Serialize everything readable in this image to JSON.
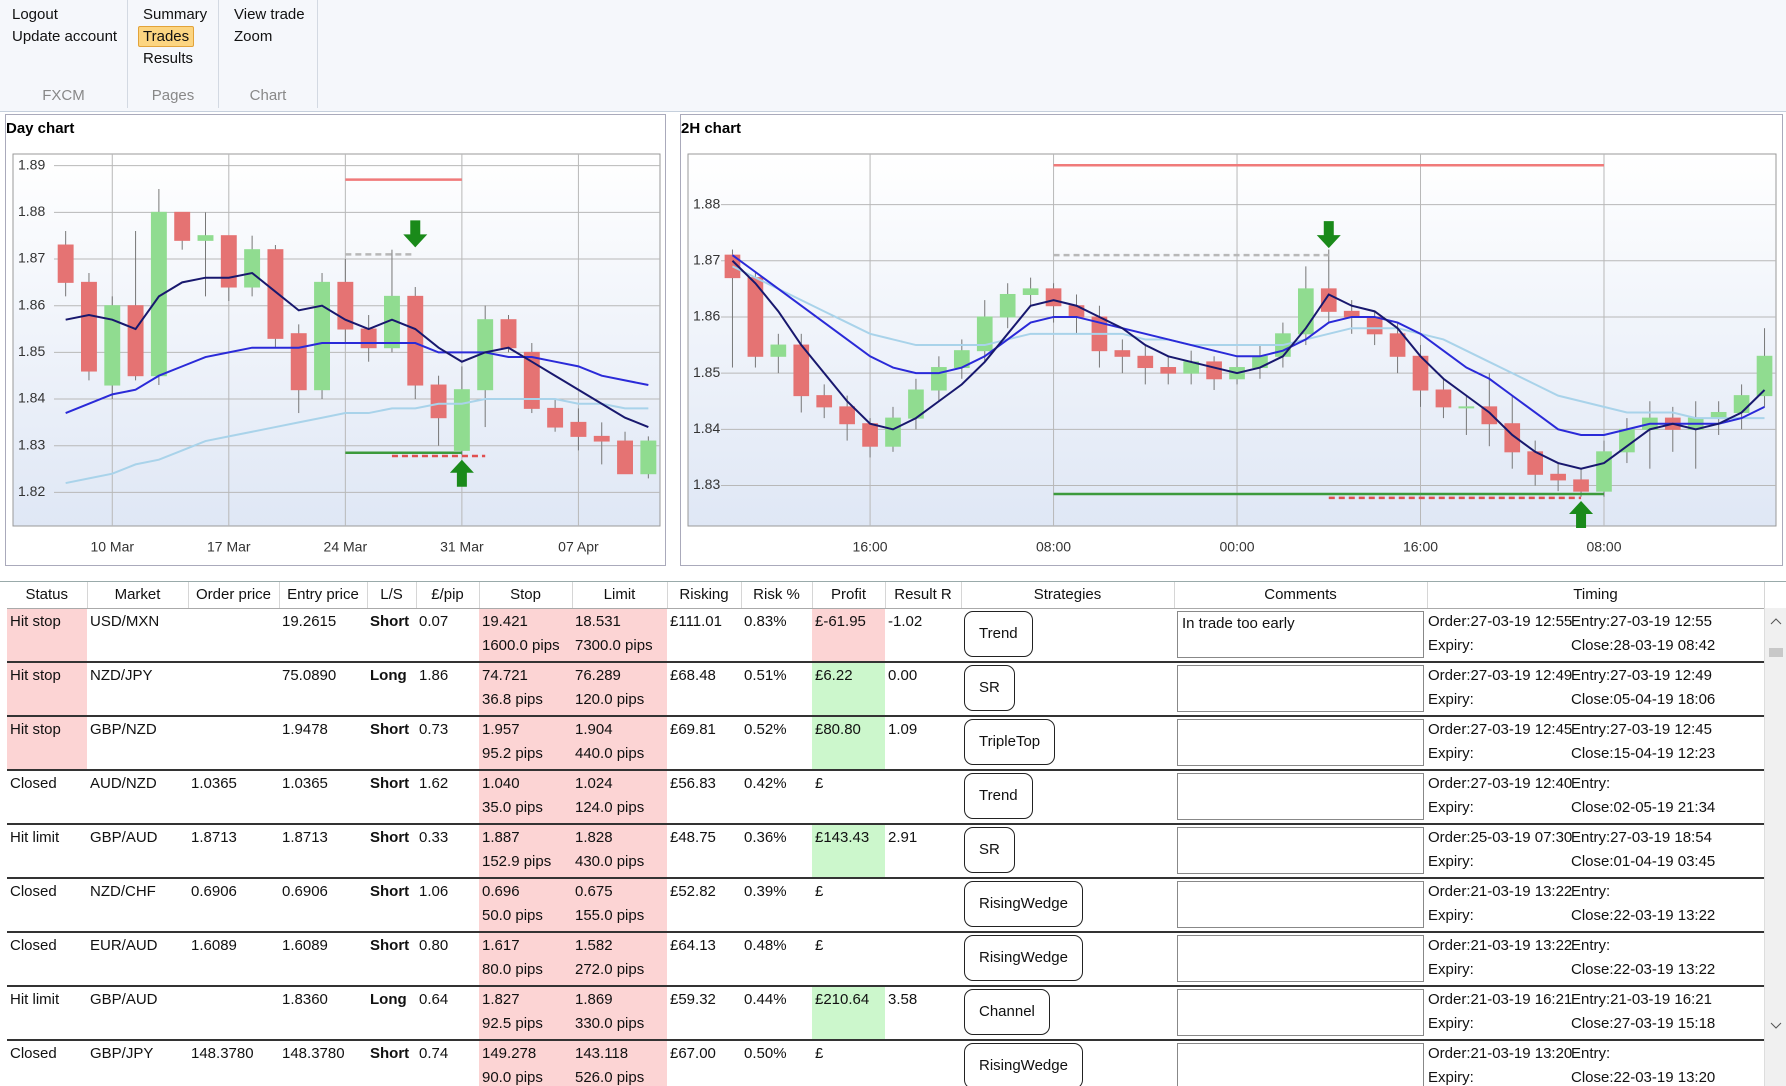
{
  "ribbon": {
    "groups": [
      {
        "label": "FXCM",
        "items": [
          "Logout",
          "Update account"
        ]
      },
      {
        "label": "Pages",
        "items": [
          "Summary",
          "Trades",
          "Results"
        ],
        "selected": 1
      },
      {
        "label": "Chart",
        "items": [
          "View trade",
          "Zoom"
        ]
      }
    ]
  },
  "chart_data": [
    {
      "type": "candlestick",
      "title": "Day chart",
      "categories": [
        null,
        null,
        "10 Mar",
        null,
        null,
        null,
        null,
        "17 Mar",
        null,
        null,
        null,
        null,
        "24 Mar",
        null,
        null,
        null,
        null,
        "31 Mar",
        null,
        null,
        null,
        null,
        "07 Apr",
        null,
        null,
        null
      ],
      "open": [
        1.873,
        1.865,
        1.843,
        1.86,
        1.845,
        1.88,
        1.874,
        1.875,
        1.864,
        1.872,
        1.854,
        1.842,
        1.865,
        1.855,
        1.851,
        1.862,
        1.843,
        1.829,
        1.842,
        1.857,
        1.85,
        1.838,
        1.835,
        1.832,
        1.831,
        1.824
      ],
      "high": [
        1.876,
        1.867,
        1.862,
        1.876,
        1.885,
        1.88,
        1.88,
        1.875,
        1.875,
        1.873,
        1.856,
        1.867,
        1.87,
        1.858,
        1.872,
        1.864,
        1.845,
        1.847,
        1.86,
        1.858,
        1.852,
        1.84,
        1.838,
        1.835,
        1.833,
        1.832
      ],
      "low": [
        1.862,
        1.844,
        1.84,
        1.844,
        1.843,
        1.872,
        1.862,
        1.861,
        1.862,
        1.851,
        1.837,
        1.84,
        1.852,
        1.848,
        1.85,
        1.84,
        1.83,
        1.828,
        1.834,
        1.85,
        1.837,
        1.833,
        1.829,
        1.826,
        1.824,
        1.823
      ],
      "close": [
        1.865,
        1.846,
        1.86,
        1.845,
        1.88,
        1.874,
        1.875,
        1.864,
        1.872,
        1.853,
        1.842,
        1.865,
        1.855,
        1.851,
        1.862,
        1.843,
        1.836,
        1.842,
        1.857,
        1.851,
        1.838,
        1.834,
        1.832,
        1.831,
        1.824,
        1.831
      ],
      "up_color": "#90dc90",
      "down_color": "#e57373",
      "series": [
        {
          "color": "#a9d3ea",
          "values": [
            1.822,
            1.823,
            1.824,
            1.826,
            1.827,
            1.829,
            1.831,
            1.832,
            1.833,
            1.834,
            1.835,
            1.836,
            1.837,
            1.837,
            1.838,
            1.838,
            1.839,
            1.839,
            1.84,
            1.84,
            1.84,
            1.84,
            1.839,
            1.839,
            1.838,
            1.838
          ]
        },
        {
          "color": "#2a2ad8",
          "values": [
            1.837,
            1.839,
            1.841,
            1.842,
            1.845,
            1.847,
            1.849,
            1.85,
            1.851,
            1.851,
            1.851,
            1.852,
            1.852,
            1.852,
            1.852,
            1.852,
            1.85,
            1.85,
            1.85,
            1.849,
            1.849,
            1.848,
            1.847,
            1.845,
            1.844,
            1.843
          ]
        },
        {
          "color": "#18186e",
          "values": [
            1.857,
            1.858,
            1.857,
            1.855,
            1.862,
            1.865,
            1.866,
            1.866,
            1.867,
            1.863,
            1.859,
            1.86,
            1.857,
            1.855,
            1.857,
            1.855,
            1.851,
            1.848,
            1.85,
            1.851,
            1.848,
            1.845,
            1.842,
            1.839,
            1.836,
            1.834
          ]
        }
      ],
      "levels": [
        {
          "value": 1.887,
          "color": "#f07a7a"
        },
        {
          "value": 1.871,
          "color": "#b8b8b8",
          "dashed": true
        },
        {
          "value": 1.8285,
          "color": "#3c9a3c"
        },
        {
          "value": 1.8278,
          "color": "#e05050",
          "dashed": true
        }
      ],
      "ylim": [
        1.8128,
        1.8925
      ],
      "yticks": [
        1.82,
        1.83,
        1.84,
        1.85,
        1.86,
        1.87,
        1.88,
        1.89
      ],
      "grid": true
    },
    {
      "type": "candlestick",
      "title": "2H chart",
      "categories": [
        null,
        null,
        null,
        null,
        null,
        null,
        "16:00",
        null,
        null,
        null,
        null,
        null,
        null,
        null,
        "08:00",
        null,
        null,
        null,
        null,
        null,
        null,
        null,
        "00:00",
        null,
        null,
        null,
        null,
        null,
        null,
        null,
        "16:00",
        null,
        null,
        null,
        null,
        null,
        null,
        null,
        "08:00",
        null,
        null,
        null,
        null,
        null,
        null,
        null
      ],
      "open": [
        1.871,
        1.867,
        1.853,
        1.855,
        1.846,
        1.844,
        1.841,
        1.837,
        1.842,
        1.847,
        1.851,
        1.854,
        1.86,
        1.864,
        1.865,
        1.862,
        1.86,
        1.854,
        1.853,
        1.851,
        1.85,
        1.852,
        1.849,
        1.851,
        1.853,
        1.857,
        1.865,
        1.861,
        1.86,
        1.857,
        1.853,
        1.847,
        1.844,
        1.844,
        1.841,
        1.836,
        1.832,
        1.831,
        1.829,
        1.836,
        1.84,
        1.842,
        1.84,
        1.842,
        1.843,
        1.846
      ],
      "high": [
        1.872,
        1.868,
        1.857,
        1.857,
        1.848,
        1.846,
        1.842,
        1.844,
        1.849,
        1.853,
        1.856,
        1.863,
        1.866,
        1.867,
        1.866,
        1.864,
        1.862,
        1.856,
        1.855,
        1.853,
        1.854,
        1.853,
        1.853,
        1.855,
        1.859,
        1.869,
        1.872,
        1.863,
        1.861,
        1.859,
        1.855,
        1.849,
        1.846,
        1.85,
        1.846,
        1.838,
        1.834,
        1.833,
        1.838,
        1.842,
        1.845,
        1.844,
        1.845,
        1.845,
        1.848,
        1.858
      ],
      "low": [
        1.851,
        1.851,
        1.85,
        1.843,
        1.842,
        1.838,
        1.835,
        1.836,
        1.84,
        1.845,
        1.849,
        1.852,
        1.858,
        1.862,
        1.859,
        1.857,
        1.851,
        1.85,
        1.848,
        1.848,
        1.848,
        1.847,
        1.848,
        1.849,
        1.851,
        1.855,
        1.859,
        1.857,
        1.855,
        1.85,
        1.844,
        1.842,
        1.839,
        1.837,
        1.833,
        1.83,
        1.829,
        1.828,
        1.828,
        1.834,
        1.833,
        1.836,
        1.833,
        1.839,
        1.84,
        1.844
      ],
      "close": [
        1.867,
        1.853,
        1.855,
        1.846,
        1.844,
        1.841,
        1.837,
        1.842,
        1.847,
        1.851,
        1.854,
        1.86,
        1.864,
        1.865,
        1.862,
        1.86,
        1.854,
        1.853,
        1.851,
        1.85,
        1.852,
        1.849,
        1.851,
        1.853,
        1.857,
        1.865,
        1.861,
        1.86,
        1.857,
        1.853,
        1.847,
        1.844,
        1.844,
        1.841,
        1.836,
        1.832,
        1.831,
        1.829,
        1.836,
        1.84,
        1.842,
        1.84,
        1.842,
        1.843,
        1.846,
        1.853
      ],
      "up_color": "#90dc90",
      "down_color": "#e57373",
      "series": [
        {
          "color": "#a9d3ea",
          "values": [
            1.869,
            1.867,
            1.865,
            1.863,
            1.861,
            1.859,
            1.857,
            1.856,
            1.855,
            1.855,
            1.855,
            1.855,
            1.856,
            1.857,
            1.857,
            1.857,
            1.857,
            1.857,
            1.856,
            1.856,
            1.855,
            1.855,
            1.855,
            1.855,
            1.855,
            1.856,
            1.857,
            1.858,
            1.858,
            1.858,
            1.857,
            1.856,
            1.854,
            1.852,
            1.85,
            1.848,
            1.846,
            1.845,
            1.844,
            1.843,
            1.843,
            1.843,
            1.842,
            1.842,
            1.842,
            1.842
          ]
        },
        {
          "color": "#2a2ad8",
          "values": [
            1.871,
            1.868,
            1.865,
            1.862,
            1.859,
            1.856,
            1.853,
            1.851,
            1.85,
            1.85,
            1.851,
            1.853,
            1.856,
            1.859,
            1.86,
            1.86,
            1.859,
            1.858,
            1.857,
            1.856,
            1.855,
            1.854,
            1.853,
            1.853,
            1.854,
            1.856,
            1.859,
            1.86,
            1.86,
            1.859,
            1.857,
            1.854,
            1.851,
            1.849,
            1.846,
            1.843,
            1.84,
            1.839,
            1.839,
            1.84,
            1.841,
            1.841,
            1.841,
            1.841,
            1.842,
            1.844
          ]
        },
        {
          "color": "#18186e",
          "values": [
            1.87,
            1.866,
            1.861,
            1.855,
            1.85,
            1.845,
            1.841,
            1.84,
            1.842,
            1.845,
            1.848,
            1.852,
            1.857,
            1.862,
            1.863,
            1.862,
            1.86,
            1.858,
            1.855,
            1.853,
            1.852,
            1.851,
            1.85,
            1.851,
            1.853,
            1.858,
            1.864,
            1.862,
            1.861,
            1.858,
            1.853,
            1.849,
            1.846,
            1.843,
            1.839,
            1.836,
            1.834,
            1.833,
            1.834,
            1.837,
            1.84,
            1.841,
            1.84,
            1.841,
            1.843,
            1.847
          ]
        }
      ],
      "levels": [
        {
          "value": 1.887,
          "color": "#f07a7a"
        },
        {
          "value": 1.871,
          "color": "#b8b8b8",
          "dashed": true
        },
        {
          "value": 1.8285,
          "color": "#3c9a3c"
        },
        {
          "value": 1.8278,
          "color": "#e05050",
          "dashed": true
        }
      ],
      "ylim": [
        1.8228,
        1.889
      ],
      "yticks": [
        1.83,
        1.84,
        1.85,
        1.86,
        1.87,
        1.88
      ],
      "grid": true
    }
  ],
  "table": {
    "columns": [
      "Status",
      "Market",
      "Order price",
      "Entry price",
      "L/S",
      "£/pip",
      "Stop",
      "Limit",
      "Risking",
      "Risk %",
      "Profit",
      "Result R",
      "Strategies",
      "Comments",
      "Timing"
    ],
    "rows": [
      {
        "status": "Hit stop",
        "status_color": "#fcd4d4",
        "market": "USD/MXN",
        "entry_price": "19.2615",
        "side": "Short",
        "per_pip": "0.07",
        "stop": "19.421",
        "stop_pips": "1600.0 pips",
        "limit": "18.531",
        "limit_pips": "7300.0 pips",
        "risking": "£111.01",
        "risk_pct": "0.83%",
        "profit": "£-61.95",
        "profit_color": "#fcd4d4",
        "result_r": "-1.02",
        "strategy": "Trend",
        "comment": "In trade too early",
        "order": "Order:27-03-19 12:55",
        "expiry": "Expiry:",
        "entry": "Entry:27-03-19 12:55",
        "close": "Close:28-03-19 08:42"
      },
      {
        "status": "Hit stop",
        "status_color": "#fcd4d4",
        "market": "NZD/JPY",
        "entry_price": "75.0890",
        "side": "Long",
        "per_pip": "1.86",
        "stop": "74.721",
        "stop_pips": "36.8 pips",
        "limit": "76.289",
        "limit_pips": "120.0 pips",
        "risking": "£68.48",
        "risk_pct": "0.51%",
        "profit": "£6.22",
        "profit_color": "#ccf7cc",
        "result_r": "0.00",
        "strategy": "SR",
        "order": "Order:27-03-19 12:49",
        "expiry": "Expiry:",
        "entry": "Entry:27-03-19 12:49",
        "close": "Close:05-04-19 18:06"
      },
      {
        "status": "Hit stop",
        "status_color": "#fcd4d4",
        "market": "GBP/NZD",
        "entry_price": "1.9478",
        "side": "Short",
        "per_pip": "0.73",
        "stop": "1.957",
        "stop_pips": "95.2 pips",
        "limit": "1.904",
        "limit_pips": "440.0 pips",
        "risking": "£69.81",
        "risk_pct": "0.52%",
        "profit": "£80.80",
        "profit_color": "#ccf7cc",
        "result_r": "1.09",
        "strategy": "TripleTop",
        "order": "Order:27-03-19 12:45",
        "expiry": "Expiry:",
        "entry": "Entry:27-03-19 12:45",
        "close": "Close:15-04-19 12:23"
      },
      {
        "status": "Closed",
        "market": "AUD/NZD",
        "order_price": "1.0365",
        "entry_price": "1.0365",
        "side": "Short",
        "per_pip": "1.62",
        "stop": "1.040",
        "stop_pips": "35.0 pips",
        "limit": "1.024",
        "limit_pips": "124.0 pips",
        "risking": "£56.83",
        "risk_pct": "0.42%",
        "profit": "£",
        "strategy": "Trend",
        "order": "Order:27-03-19 12:40",
        "expiry": "Expiry:",
        "entry": "Entry:",
        "close": "Close:02-05-19 21:34"
      },
      {
        "status": "Hit limit",
        "market": "GBP/AUD",
        "order_price": "1.8713",
        "entry_price": "1.8713",
        "side": "Short",
        "per_pip": "0.33",
        "stop": "1.887",
        "stop_pips": "152.9 pips",
        "limit": "1.828",
        "limit_pips": "430.0 pips",
        "risking": "£48.75",
        "risk_pct": "0.36%",
        "profit": "£143.43",
        "profit_color": "#ccf7cc",
        "result_r": "2.91",
        "strategy": "SR",
        "order": "Order:25-03-19 07:30",
        "expiry": "Expiry:",
        "entry": "Entry:27-03-19 18:54",
        "close": "Close:01-04-19 03:45"
      },
      {
        "status": "Closed",
        "market": "NZD/CHF",
        "order_price": "0.6906",
        "entry_price": "0.6906",
        "side": "Short",
        "per_pip": "1.06",
        "stop": "0.696",
        "stop_pips": "50.0 pips",
        "limit": "0.675",
        "limit_pips": "155.0 pips",
        "risking": "£52.82",
        "risk_pct": "0.39%",
        "profit": "£",
        "strategy": "RisingWedge",
        "order": "Order:21-03-19 13:22",
        "expiry": "Expiry:",
        "entry": "Entry:",
        "close": "Close:22-03-19 13:22"
      },
      {
        "status": "Closed",
        "market": "EUR/AUD",
        "order_price": "1.6089",
        "entry_price": "1.6089",
        "side": "Short",
        "per_pip": "0.80",
        "stop": "1.617",
        "stop_pips": "80.0 pips",
        "limit": "1.582",
        "limit_pips": "272.0 pips",
        "risking": "£64.13",
        "risk_pct": "0.48%",
        "profit": "£",
        "strategy": "RisingWedge",
        "order": "Order:21-03-19 13:22",
        "expiry": "Expiry:",
        "entry": "Entry:",
        "close": "Close:22-03-19 13:22"
      },
      {
        "status": "Hit limit",
        "market": "GBP/AUD",
        "entry_price": "1.8360",
        "side": "Long",
        "per_pip": "0.64",
        "stop": "1.827",
        "stop_pips": "92.5 pips",
        "limit": "1.869",
        "limit_pips": "330.0 pips",
        "risking": "£59.32",
        "risk_pct": "0.44%",
        "profit": "£210.64",
        "profit_color": "#ccf7cc",
        "result_r": "3.58",
        "strategy": "Channel",
        "order": "Order:21-03-19 16:21",
        "expiry": "Expiry:",
        "entry": "Entry:21-03-19 16:21",
        "close": "Close:27-03-19 15:18"
      },
      {
        "status": "Closed",
        "market": "GBP/JPY",
        "order_price": "148.3780",
        "entry_price": "148.3780",
        "side": "Short",
        "per_pip": "0.74",
        "stop": "149.278",
        "stop_pips": "90.0 pips",
        "limit": "143.118",
        "limit_pips": "526.0 pips",
        "risking": "£67.00",
        "risk_pct": "0.50%",
        "profit": "£",
        "strategy": "RisingWedge",
        "order": "Order:21-03-19 13:20",
        "expiry": "Expiry:",
        "entry": "Entry:",
        "close": "Close:22-03-19 13:20"
      }
    ]
  }
}
